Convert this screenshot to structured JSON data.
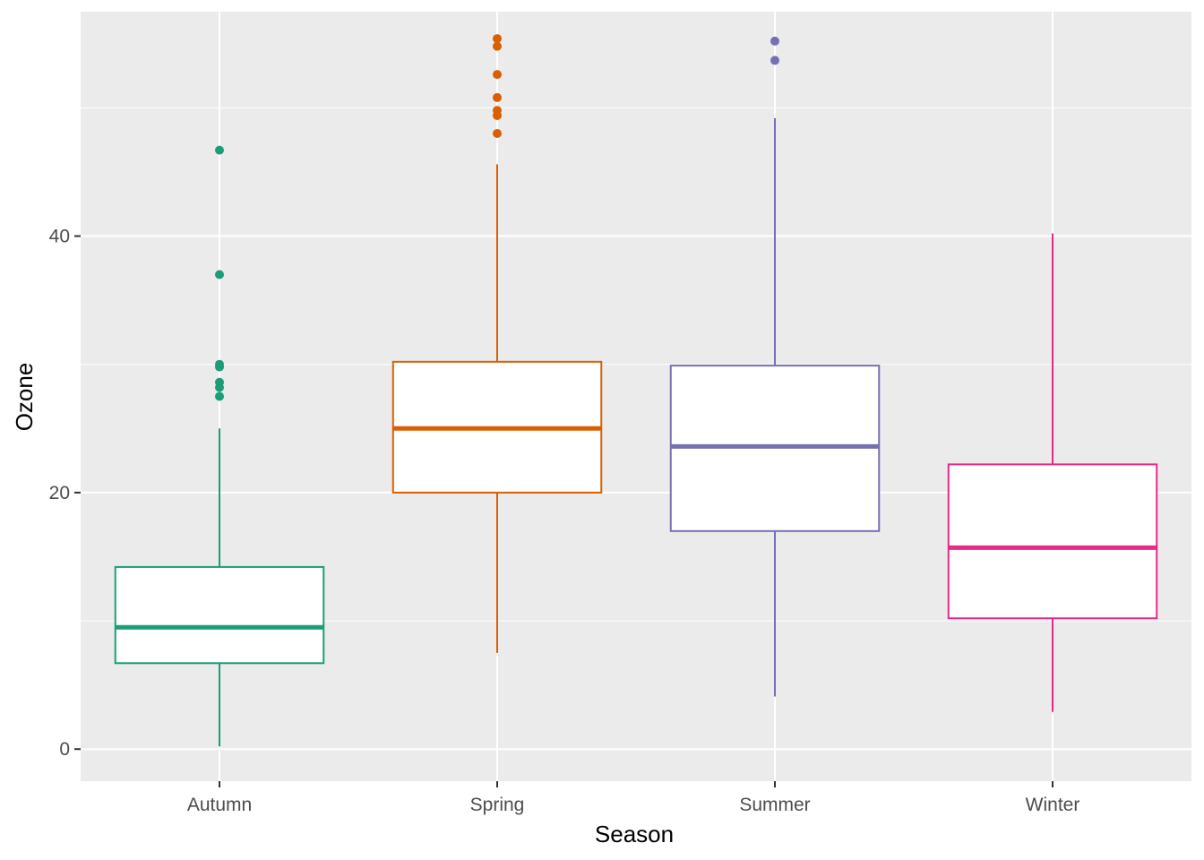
{
  "chart_data": {
    "type": "boxplot",
    "title": "",
    "xlabel": "Season",
    "ylabel": "Ozone",
    "ylim": [
      -2.5,
      57.5
    ],
    "y_ticks": [
      0,
      20,
      40
    ],
    "grid": true,
    "legend": "none",
    "panel_background": "#ebebeb",
    "grid_color": "#ffffff",
    "categories": [
      "Autumn",
      "Spring",
      "Summer",
      "Winter"
    ],
    "series": [
      {
        "category": "Autumn",
        "color": "#1b9e77",
        "whisker_low": 0.2,
        "q1": 6.7,
        "median": 9.5,
        "q3": 14.2,
        "whisker_high": 25.0,
        "outliers": [
          27.5,
          28.2,
          28.6,
          29.8,
          30.0,
          37.0,
          46.7
        ]
      },
      {
        "category": "Spring",
        "color": "#d95f02",
        "whisker_low": 7.5,
        "q1": 20.0,
        "median": 25.0,
        "q3": 30.2,
        "whisker_high": 45.6,
        "outliers": [
          48.0,
          49.4,
          49.8,
          50.8,
          52.6,
          54.8,
          55.4
        ]
      },
      {
        "category": "Summer",
        "color": "#7570b3",
        "whisker_low": 4.1,
        "q1": 17.0,
        "median": 23.6,
        "q3": 29.9,
        "whisker_high": 49.2,
        "outliers": [
          53.7,
          55.2
        ]
      },
      {
        "category": "Winter",
        "color": "#e7298a",
        "whisker_low": 2.9,
        "q1": 10.2,
        "median": 15.7,
        "q3": 22.2,
        "whisker_high": 40.2,
        "outliers": []
      }
    ]
  }
}
